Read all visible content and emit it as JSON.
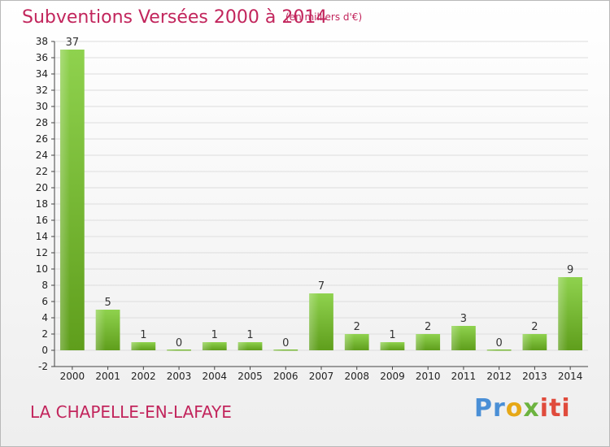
{
  "header": {
    "title": "Subventions Versées 2000 à 2014",
    "units": "(en milliers d'€)"
  },
  "footer": {
    "place": "LA CHAPELLE-EN-LAFAYE",
    "logo_parts": [
      "Pr",
      "o",
      "x",
      "iti"
    ]
  },
  "colors": {
    "title": "#c2255c",
    "bar_light": "#8fd24e",
    "bar_dark": "#5f9e1c",
    "grid": "#dddddd"
  },
  "chart_data": {
    "type": "bar",
    "title": "Subventions Versées 2000 à 2014",
    "subtitle": "(en milliers d'€)",
    "categories": [
      "2000",
      "2001",
      "2002",
      "2003",
      "2004",
      "2005",
      "2006",
      "2007",
      "2008",
      "2009",
      "2010",
      "2011",
      "2012",
      "2013",
      "2014"
    ],
    "values": [
      37,
      5,
      1,
      0,
      1,
      1,
      0,
      7,
      2,
      1,
      2,
      3,
      0,
      2,
      9
    ],
    "ylim": [
      -2,
      38
    ],
    "ytick_step": 2,
    "grid": "horizontal",
    "xlabel": "",
    "ylabel": ""
  }
}
